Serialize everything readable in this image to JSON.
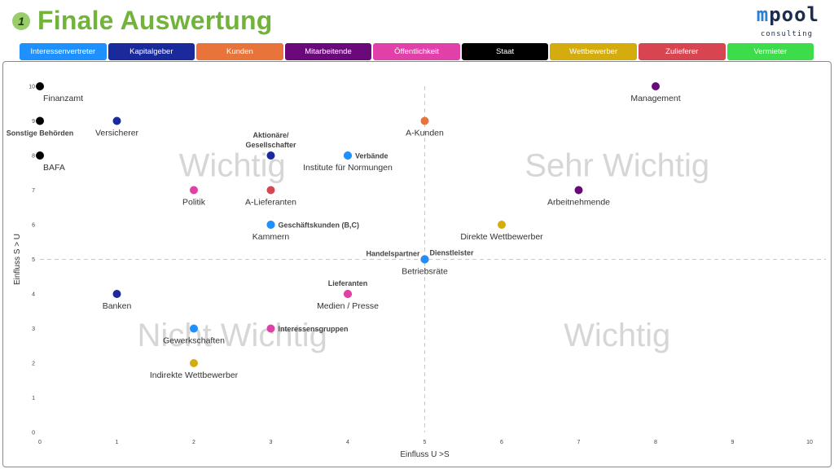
{
  "header": {
    "step": "1",
    "title": "Finale Auswertung",
    "logo_main_m": "m",
    "logo_main_rest": "pool",
    "logo_sub": "consulting"
  },
  "legend": [
    {
      "label": "Interessenvertreter",
      "color": "#1e90ff"
    },
    {
      "label": "Kapitalgeber",
      "color": "#1a2a9c"
    },
    {
      "label": "Kunden",
      "color": "#e8743b"
    },
    {
      "label": "Mitarbeitende",
      "color": "#6a0a7a"
    },
    {
      "label": "Öffentlichkeit",
      "color": "#e040a8"
    },
    {
      "label": "Staat",
      "color": "#000000"
    },
    {
      "label": "Wettbewerber",
      "color": "#d4ac0d"
    },
    {
      "label": "Zulieferer",
      "color": "#d64550"
    },
    {
      "label": "Vermieter",
      "color": "#3ddc4a"
    }
  ],
  "chart_data": {
    "type": "scatter",
    "xlabel": "Einfluss U >S",
    "ylabel": "Einfluss S > U",
    "xlim": [
      0,
      10
    ],
    "ylim": [
      0,
      10
    ],
    "xticks": [
      "0",
      "1",
      "2",
      "3",
      "4",
      "5",
      "6",
      "7",
      "8",
      "9",
      "10"
    ],
    "yticks": [
      "0",
      "1",
      "2",
      "3",
      "4",
      "5",
      "6",
      "7",
      "8",
      "9",
      "10"
    ],
    "threshold_x": 5,
    "threshold_y": 5,
    "quadrants": [
      {
        "label": "Wichtig",
        "pos": "top-left"
      },
      {
        "label": "Sehr Wichtig",
        "pos": "top-right"
      },
      {
        "label": "Nicht Wichtig",
        "pos": "bottom-left"
      },
      {
        "label": "Wichtig",
        "pos": "bottom-right"
      }
    ],
    "points": [
      {
        "label": "Finanzamt",
        "x": 0,
        "y": 10,
        "color": "#000000",
        "lpos": "below-right",
        "style": "n"
      },
      {
        "label": "Sonstige Behörden",
        "x": 0,
        "y": 9,
        "color": "#000000",
        "lpos": "below",
        "style": "b"
      },
      {
        "label": "BAFA",
        "x": 0,
        "y": 8,
        "color": "#000000",
        "lpos": "below-right",
        "style": "n"
      },
      {
        "label": "Versicherer",
        "x": 1,
        "y": 9,
        "color": "#1a2a9c",
        "lpos": "below",
        "style": "n"
      },
      {
        "label": "Aktionäre/\nGesellschafter",
        "x": 3,
        "y": 8,
        "color": "#1a2a9c",
        "lpos": "above",
        "style": "b"
      },
      {
        "label": "Verbände",
        "x": 4,
        "y": 8,
        "color": "#1e90ff",
        "lpos": "right",
        "style": "b"
      },
      {
        "label": "Institute für Normungen",
        "x": 4,
        "y": 8,
        "color": "#1e90ff",
        "lpos": "below",
        "style": "n"
      },
      {
        "label": "A-Kunden",
        "x": 5,
        "y": 9,
        "color": "#e8743b",
        "lpos": "below",
        "style": "n"
      },
      {
        "label": "Management",
        "x": 8,
        "y": 10,
        "color": "#6a0a7a",
        "lpos": "below",
        "style": "n"
      },
      {
        "label": "Politik",
        "x": 2,
        "y": 7,
        "color": "#e040a8",
        "lpos": "below",
        "style": "n"
      },
      {
        "label": "A-Lieferanten",
        "x": 3,
        "y": 7,
        "color": "#d64550",
        "lpos": "below",
        "style": "n"
      },
      {
        "label": "Arbeitnehmende",
        "x": 7,
        "y": 7,
        "color": "#6a0a7a",
        "lpos": "below",
        "style": "n"
      },
      {
        "label": "Geschäftskunden (B,C)",
        "x": 3,
        "y": 6,
        "color": "#e8743b",
        "lpos": "right",
        "style": "b"
      },
      {
        "label": "Kammern",
        "x": 3,
        "y": 6,
        "color": "#1e90ff",
        "lpos": "below",
        "style": "n"
      },
      {
        "label": "Direkte Wettbewerber",
        "x": 6,
        "y": 6,
        "color": "#d4ac0d",
        "lpos": "below",
        "style": "n"
      },
      {
        "label": "Handelspartner",
        "x": 5,
        "y": 5,
        "color": "#e8743b",
        "lpos": "above-left",
        "style": "b"
      },
      {
        "label": "Dienstleister",
        "x": 5,
        "y": 5,
        "color": "#d64550",
        "lpos": "above-right",
        "style": "b"
      },
      {
        "label": "Betriebsräte",
        "x": 5,
        "y": 5,
        "color": "#1e90ff",
        "lpos": "below",
        "style": "n"
      },
      {
        "label": "Banken",
        "x": 1,
        "y": 4,
        "color": "#1a2a9c",
        "lpos": "below",
        "style": "n"
      },
      {
        "label": "Lieferanten",
        "x": 4,
        "y": 4,
        "color": "#d64550",
        "lpos": "above",
        "style": "b"
      },
      {
        "label": "Medien / Presse",
        "x": 4,
        "y": 4,
        "color": "#e040a8",
        "lpos": "below",
        "style": "n"
      },
      {
        "label": "Gewerkschaften",
        "x": 2,
        "y": 3,
        "color": "#1e90ff",
        "lpos": "below",
        "style": "n"
      },
      {
        "label": "Interessensgruppen",
        "x": 3,
        "y": 3,
        "color": "#e040a8",
        "lpos": "right",
        "style": "b"
      },
      {
        "label": "Indirekte Wettbewerber",
        "x": 2,
        "y": 2,
        "color": "#d4ac0d",
        "lpos": "below",
        "style": "n"
      }
    ]
  }
}
